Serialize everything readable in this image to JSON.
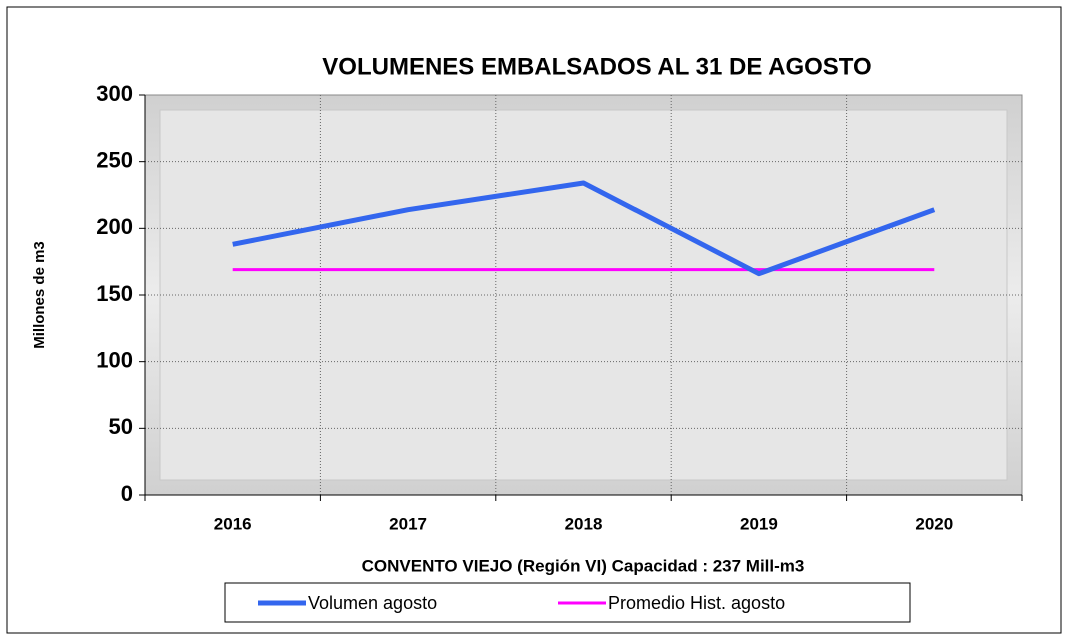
{
  "chart_data": {
    "type": "line",
    "title": "VOLUMENES EMBALSADOS  AL 31 DE AGOSTO",
    "x_label": "CONVENTO VIEJO (Región VI) Capacidad : 237 Mill-m3",
    "y_label": "Millones de m3",
    "categories": [
      "2016",
      "2017",
      "2018",
      "2019",
      "2020"
    ],
    "series": [
      {
        "name": "Volumen agosto",
        "color": "#3366ee",
        "values": [
          188,
          214,
          234,
          166,
          214
        ]
      },
      {
        "name": "Promedio Hist. agosto",
        "color": "#ff00ff",
        "values": [
          169,
          169,
          169,
          169,
          169
        ]
      }
    ],
    "ylim": [
      0,
      300
    ],
    "yticks": [
      0,
      50,
      100,
      150,
      200,
      250,
      300
    ],
    "grid": true,
    "legend": "bottom"
  }
}
